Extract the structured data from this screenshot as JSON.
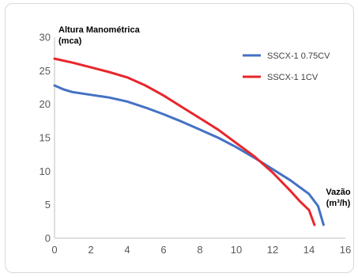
{
  "chart_data": {
    "type": "line",
    "ylabel_line1": "Altura Manométrica",
    "ylabel_line2": "(mca)",
    "xlabel_line1": "Vazão",
    "xlabel_line2": "(m³/h)",
    "xlim": [
      0,
      16
    ],
    "ylim": [
      0,
      30
    ],
    "xticks": [
      0,
      2,
      4,
      6,
      8,
      10,
      12,
      14,
      16
    ],
    "yticks": [
      0,
      5,
      10,
      15,
      20,
      25,
      30
    ],
    "grid": false,
    "legend_position": "top-right",
    "series": [
      {
        "name": "SSCX-1 0.75CV",
        "color": "#4472c4",
        "x": [
          0,
          0.5,
          1,
          2,
          3,
          4,
          5,
          6,
          7,
          8,
          9,
          10,
          11,
          12,
          13,
          14,
          14.5,
          14.8
        ],
        "y": [
          22.8,
          22.2,
          21.8,
          21.4,
          21.0,
          20.4,
          19.5,
          18.5,
          17.4,
          16.2,
          15.0,
          13.6,
          12.0,
          10.3,
          8.6,
          6.6,
          4.8,
          2.0
        ]
      },
      {
        "name": "SSCX-1 1CV",
        "color": "#e8262c",
        "x": [
          0,
          1,
          2,
          3,
          4,
          5,
          6,
          7,
          8,
          9,
          10,
          11,
          12,
          13,
          13.5,
          14,
          14.3
        ],
        "y": [
          26.8,
          26.2,
          25.5,
          24.8,
          24.0,
          22.8,
          21.3,
          19.6,
          17.9,
          16.2,
          14.2,
          12.2,
          9.8,
          7.0,
          5.5,
          4.2,
          2.0
        ]
      }
    ]
  }
}
